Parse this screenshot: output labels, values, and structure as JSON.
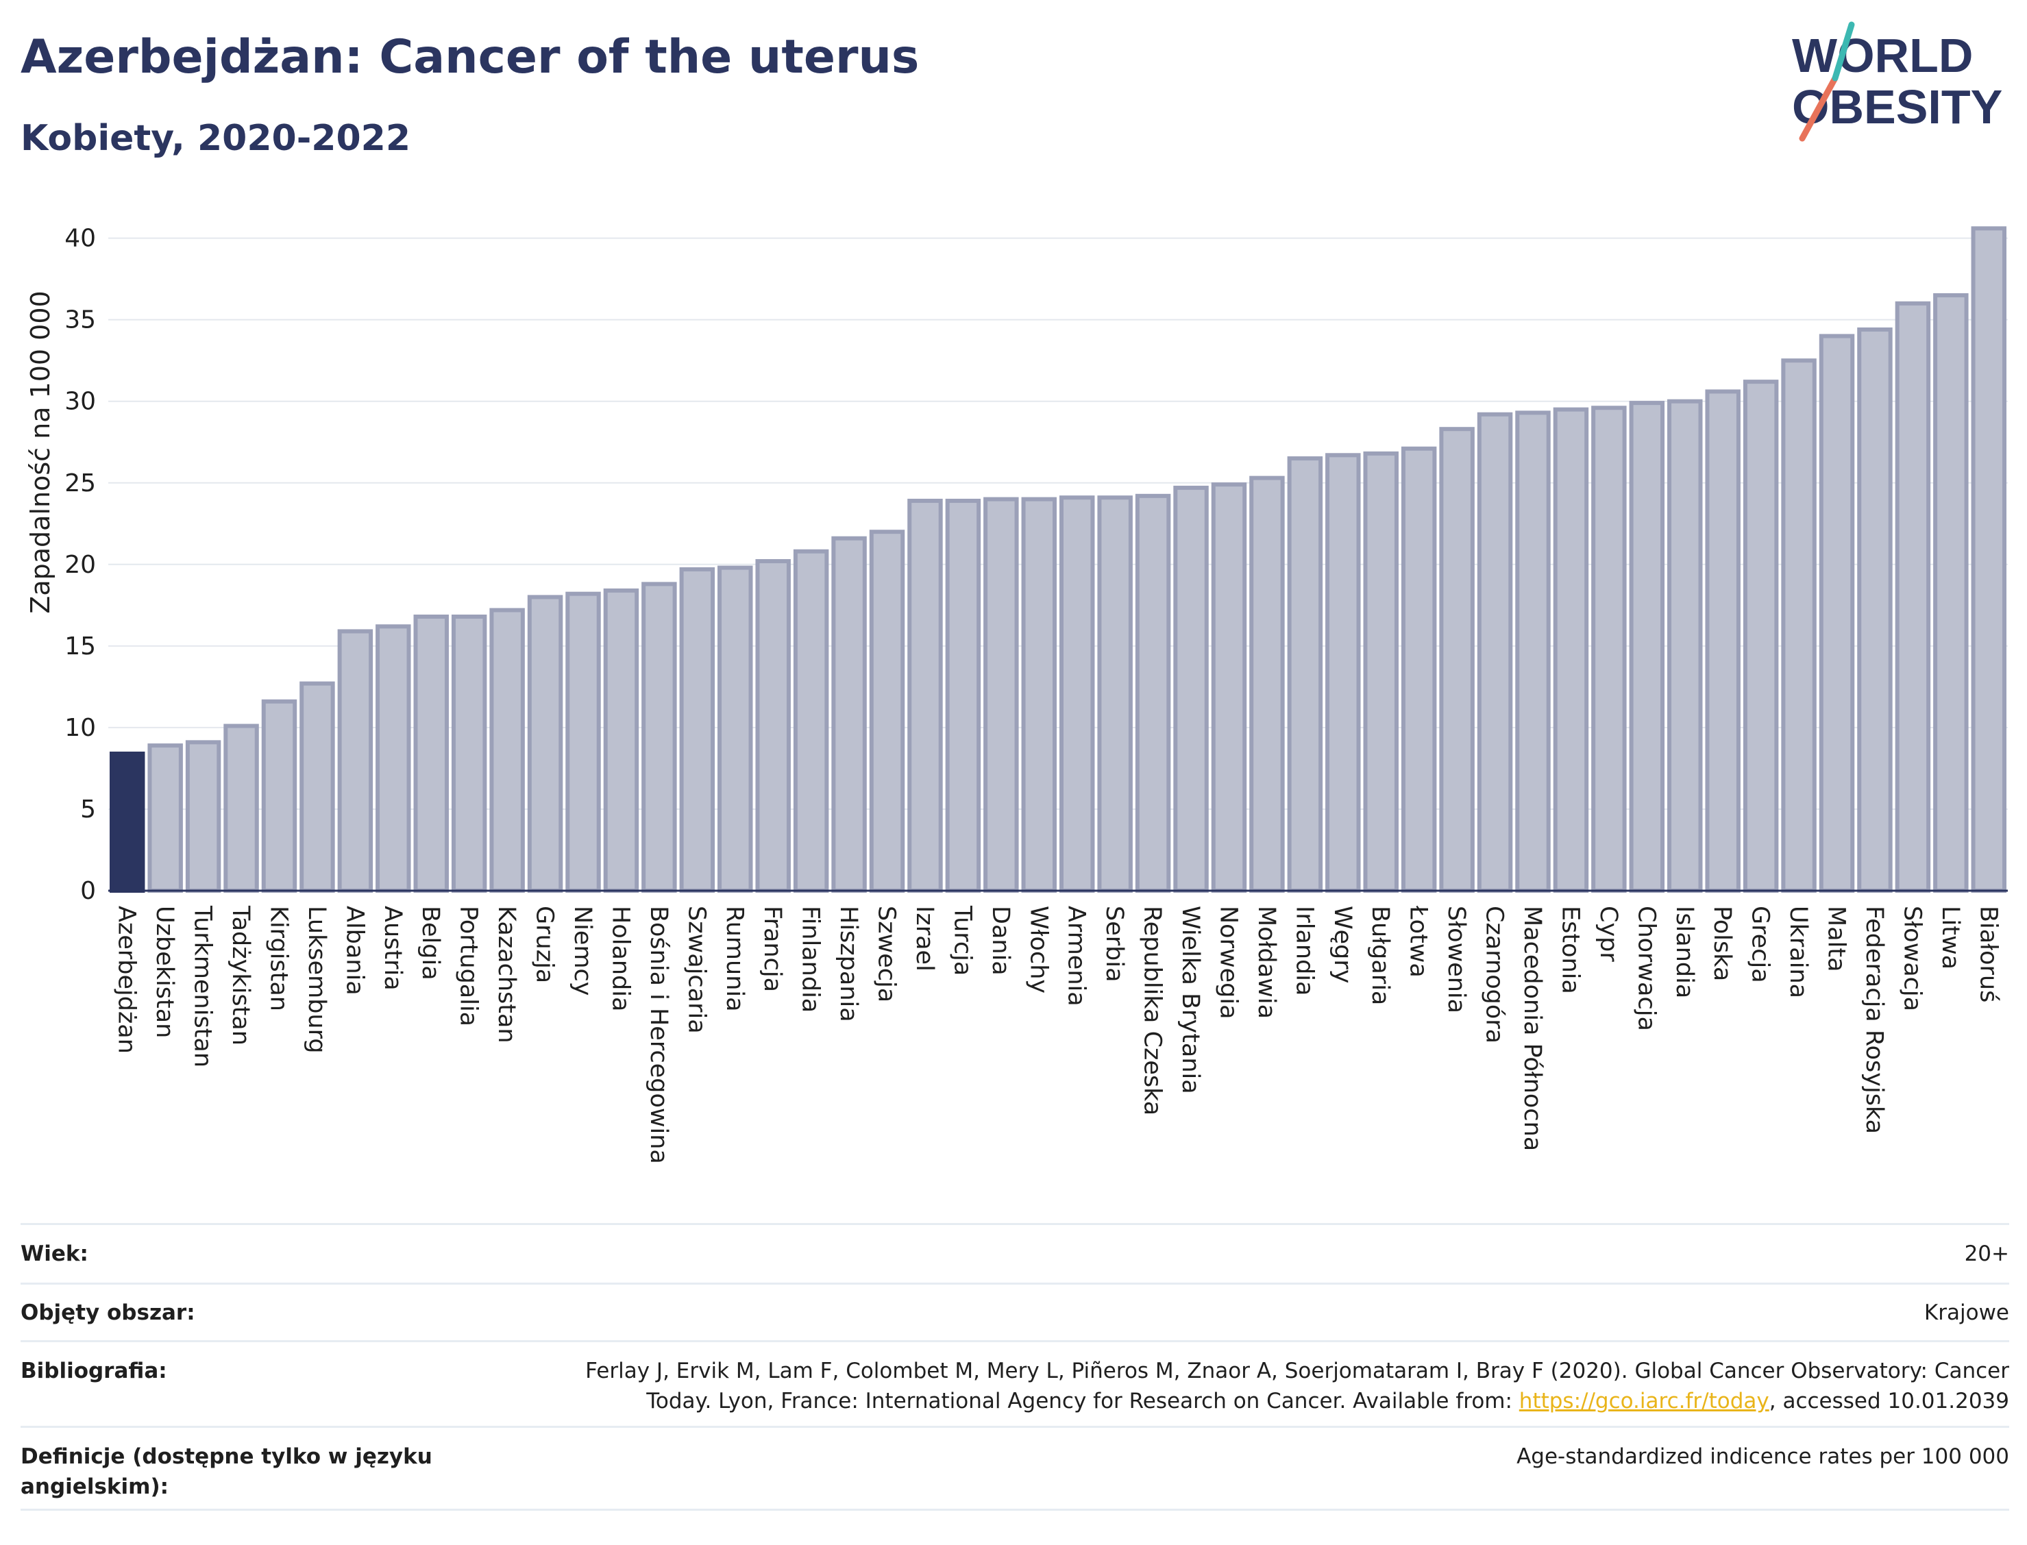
{
  "title": "Azerbejdżan: Cancer of the uterus",
  "subtitle": "Kobiety, 2020-2022",
  "logo": {
    "line1": "WORLD",
    "line2": "OBESITY"
  },
  "colors": {
    "highlight": "#2b3560",
    "bar_fill": "#bcc0cf",
    "bar_stroke": "#9ba0b8",
    "accent_red": "#e8735a",
    "accent_teal": "#3cb8b2"
  },
  "chart_data": {
    "type": "bar",
    "ylabel": "Zapadalność na 100 000",
    "ylim": [
      0,
      42
    ],
    "yticks": [
      0,
      5,
      10,
      15,
      20,
      25,
      30,
      35,
      40
    ],
    "grid": true,
    "highlight": "Azerbejdżan",
    "categories": [
      "Azerbejdżan",
      "Uzbekistan",
      "Turkmenistan",
      "Tadżykistan",
      "Kirgistan",
      "Luksemburg",
      "Albania",
      "Austria",
      "Belgia",
      "Portugalia",
      "Kazachstan",
      "Gruzja",
      "Niemcy",
      "Holandia",
      "Bośnia i Hercegowina",
      "Szwajcaria",
      "Rumunia",
      "Francja",
      "Finlandia",
      "Hiszpania",
      "Szwecja",
      "Izrael",
      "Turcja",
      "Dania",
      "Włochy",
      "Armenia",
      "Serbia",
      "Republika Czeska",
      "Wielka Brytania",
      "Norwegia",
      "Mołdawia",
      "Irlandia",
      "Węgry",
      "Bułgaria",
      "Łotwa",
      "Słowenia",
      "Czarnogóra",
      "Macedonia Północna",
      "Estonia",
      "Cypr",
      "Chorwacja",
      "Islandia",
      "Polska",
      "Grecja",
      "Ukraina",
      "Malta",
      "Federacja Rosyjska",
      "Słowacja",
      "Litwa",
      "Białoruś"
    ],
    "values": [
      8.4,
      8.9,
      9.1,
      10.1,
      11.6,
      12.7,
      15.9,
      16.2,
      16.8,
      16.8,
      17.2,
      18.0,
      18.2,
      18.4,
      18.8,
      19.7,
      19.8,
      20.2,
      20.8,
      21.6,
      22.0,
      23.9,
      23.9,
      24.0,
      24.0,
      24.1,
      24.1,
      24.2,
      24.7,
      24.9,
      25.3,
      26.5,
      26.7,
      26.8,
      27.1,
      28.3,
      29.2,
      29.3,
      29.5,
      29.6,
      29.9,
      30.0,
      30.6,
      31.2,
      32.5,
      34.0,
      34.4,
      36.0,
      36.5,
      40.6
    ]
  },
  "info": {
    "rows": [
      {
        "label": "Wiek:",
        "value": "20+"
      },
      {
        "label": "Objęty obszar:",
        "value": "Krajowe"
      },
      {
        "label": "Bibliografia:",
        "value_line1": "Ferlay J, Ervik M, Lam F, Colombet M, Mery L, Piñeros M, Znaor A, Soerjomataram I, Bray F (2020). Global Cancer Observatory: Cancer",
        "value_line2_pre": "Today. Lyon, France: International Agency for Research on Cancer. Available from: ",
        "link": "https://gco.iarc.fr/today",
        "value_line2_post": ", accessed 10.01.2039"
      },
      {
        "label": "Definicje (dostępne tylko w języku angielskim):",
        "value": "Age-standardized indicence rates per 100 000"
      }
    ]
  }
}
